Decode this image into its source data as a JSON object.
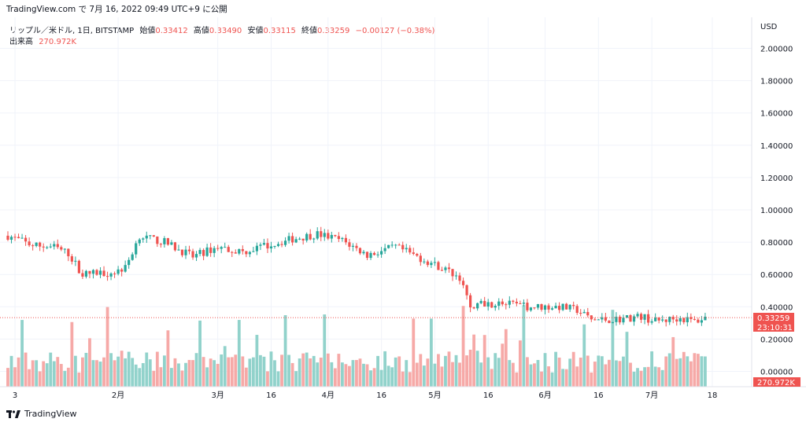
{
  "header": {
    "source_line": "TradingView.com で 7月 16, 2022 09:49 UTC+9 に公開"
  },
  "legend": {
    "symbol": "リップル／米ドル, 1日, BITSTAMP",
    "open_label": "始値",
    "open": "0.33412",
    "high_label": "高値",
    "high": "0.33490",
    "low_label": "安値",
    "low": "0.33115",
    "close_label": "終値",
    "close": "0.33259",
    "change": "−0.00127 (−0.38%)",
    "volume_label": "出来高",
    "volume": "270.972K"
  },
  "footer": {
    "brand": "TradingView"
  },
  "colors": {
    "up": "#26a69a",
    "down": "#ef5350",
    "up_volume": "#91d2cb",
    "down_volume": "#f6a9a7"
  },
  "chart_data": {
    "type": "candlestick",
    "currency_label": "USD",
    "y_ticks": [
      "2.00000",
      "1.80000",
      "1.60000",
      "1.40000",
      "1.20000",
      "1.00000",
      "0.80000",
      "0.60000",
      "0.40000",
      "0.20000",
      "0.00000"
    ],
    "ylim": [
      -0.08,
      2.1
    ],
    "x_ticks": [
      "3",
      "2月",
      "3月",
      "16",
      "4月",
      "16",
      "5月",
      "16",
      "6月",
      "16",
      "7月",
      "18"
    ],
    "last_price": "0.33259",
    "countdown": "23:10:31",
    "last_volume": "270.972K",
    "series": [
      {
        "name": "price",
        "type": "candlestick",
        "anchors": [
          {
            "date": "2022-01-01",
            "close": 0.84
          },
          {
            "date": "2022-01-08",
            "close": 0.78
          },
          {
            "date": "2022-01-14",
            "close": 0.77
          },
          {
            "date": "2022-01-18",
            "close": 0.73
          },
          {
            "date": "2022-01-22",
            "close": 0.6
          },
          {
            "date": "2022-01-26",
            "close": 0.61
          },
          {
            "date": "2022-01-30",
            "close": 0.61
          },
          {
            "date": "2022-02-03",
            "close": 0.64
          },
          {
            "date": "2022-02-07",
            "close": 0.84
          },
          {
            "date": "2022-02-10",
            "close": 0.82
          },
          {
            "date": "2022-02-14",
            "close": 0.8
          },
          {
            "date": "2022-02-22",
            "close": 0.71
          },
          {
            "date": "2022-03-01",
            "close": 0.77
          },
          {
            "date": "2022-03-08",
            "close": 0.74
          },
          {
            "date": "2022-03-15",
            "close": 0.78
          },
          {
            "date": "2022-03-22",
            "close": 0.82
          },
          {
            "date": "2022-03-29",
            "close": 0.85
          },
          {
            "date": "2022-04-05",
            "close": 0.81
          },
          {
            "date": "2022-04-12",
            "close": 0.72
          },
          {
            "date": "2022-04-20",
            "close": 0.77
          },
          {
            "date": "2022-04-27",
            "close": 0.7
          },
          {
            "date": "2022-05-04",
            "close": 0.63
          },
          {
            "date": "2022-05-08",
            "close": 0.58
          },
          {
            "date": "2022-05-11",
            "close": 0.4
          },
          {
            "date": "2022-05-13",
            "close": 0.42
          },
          {
            "date": "2022-05-20",
            "close": 0.42
          },
          {
            "date": "2022-05-27",
            "close": 0.4
          },
          {
            "date": "2022-06-05",
            "close": 0.4
          },
          {
            "date": "2022-06-10",
            "close": 0.38
          },
          {
            "date": "2022-06-14",
            "close": 0.32
          },
          {
            "date": "2022-06-20",
            "close": 0.32
          },
          {
            "date": "2022-06-28",
            "close": 0.34
          },
          {
            "date": "2022-07-02",
            "close": 0.31
          },
          {
            "date": "2022-07-09",
            "close": 0.33
          },
          {
            "date": "2022-07-13",
            "close": 0.31
          },
          {
            "date": "2022-07-16",
            "close": 0.33
          }
        ]
      },
      {
        "name": "volume",
        "type": "bar"
      }
    ]
  }
}
